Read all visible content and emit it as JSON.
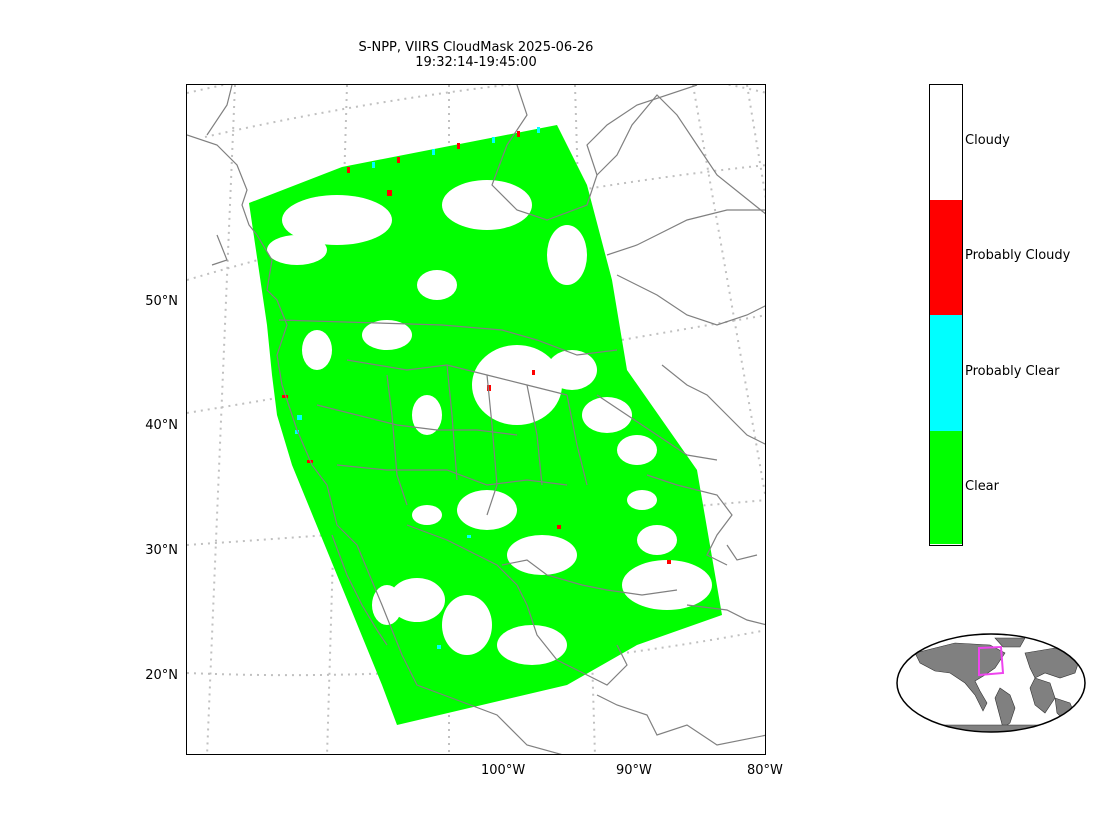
{
  "title": {
    "line1": "S-NPP, VIIRS CloudMask 2025-06-26",
    "line2": "19:32:14-19:45:00"
  },
  "map": {
    "projection": "lambert-conformal",
    "gridlines": "dotted",
    "lat_labels": [
      "50°N",
      "40°N",
      "30°N",
      "20°N"
    ],
    "lon_labels": [
      "100°W",
      "90°W",
      "80°W"
    ],
    "coastline_color": "#808080",
    "gridline_color": "#c0c0c0"
  },
  "colorbar": {
    "categories": [
      {
        "label": "Cloudy",
        "color": "#ffffff"
      },
      {
        "label": "Probably Cloudy",
        "color": "#ff0000"
      },
      {
        "label": "Probably Clear",
        "color": "#00ffff"
      },
      {
        "label": "Clear",
        "color": "#00ff00"
      }
    ]
  },
  "inset": {
    "description_icon": "globe-overview-icon",
    "land_color": "#808080",
    "highlight_color": "#ee44ee"
  }
}
